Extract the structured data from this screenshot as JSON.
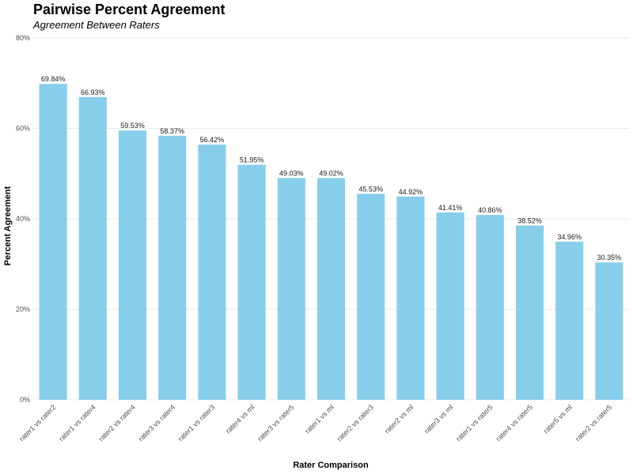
{
  "chart_data": {
    "type": "bar",
    "title": "Pairwise Percent Agreement",
    "subtitle": "Agreement Between Raters",
    "xlabel": "Rater Comparison",
    "ylabel": "Percent Agreement",
    "categories": [
      "rater1 vs rater2",
      "rater1 vs rater4",
      "rater2 vs rater4",
      "rater3 vs rater4",
      "rater1 vs rater3",
      "rater4 vs ml",
      "rater3 vs rater5",
      "rater1 vs ml",
      "rater2 vs rater3",
      "rater2 vs ml",
      "rater3 vs ml",
      "rater1 vs rater5",
      "rater4 vs rater5",
      "rater5 vs ml",
      "rater2 vs rater5"
    ],
    "values": [
      69.84,
      66.93,
      59.53,
      58.37,
      56.42,
      51.95,
      49.03,
      49.02,
      45.53,
      44.92,
      41.41,
      40.86,
      38.52,
      34.96,
      30.35
    ],
    "data_labels": [
      "69.84%",
      "66.93%",
      "59.53%",
      "58.37%",
      "56.42%",
      "51.95%",
      "49.03%",
      "49.02%",
      "45.53%",
      "44.92%",
      "41.41%",
      "40.86%",
      "38.52%",
      "34.96%",
      "30.35%"
    ],
    "ylim": [
      0,
      80
    ],
    "yticks": [
      0,
      20,
      40,
      60,
      80
    ],
    "ytick_labels": [
      "0%",
      "20%",
      "40%",
      "60%",
      "80%"
    ],
    "grid": true,
    "bar_color": "#87CEEB",
    "grid_color": "#ebebeb"
  }
}
